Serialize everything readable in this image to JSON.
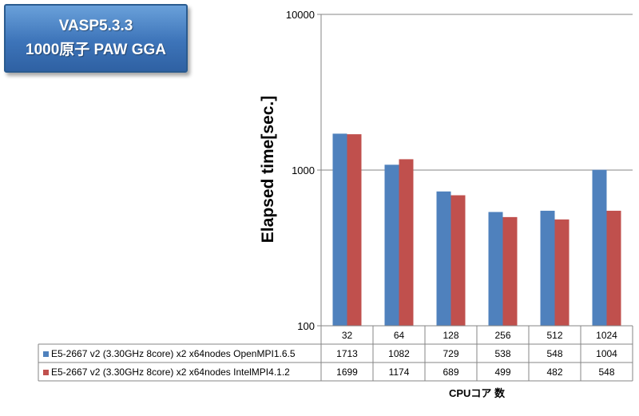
{
  "title_box": {
    "line1": "VASP5.3.3",
    "line2": "1000原子 PAW GGA"
  },
  "chart_data": {
    "type": "bar",
    "categories": [
      "32",
      "64",
      "128",
      "256",
      "512",
      "1024"
    ],
    "series": [
      {
        "name": "E5-2667 v2 (3.30GHz 8core) x2 x64nodes OpenMPI1.6.5",
        "color": "#4f81bd",
        "values": [
          1713,
          1082,
          729,
          538,
          548,
          1004
        ]
      },
      {
        "name": "E5-2667 v2 (3.30GHz 8core) x2 x64nodes IntelMPI4.1.2",
        "color": "#c0504d",
        "values": [
          1699,
          1174,
          689,
          499,
          482,
          548
        ]
      }
    ],
    "ylabel": "Elapsed time[sec.]",
    "xlabel": "CPUコア 数",
    "yscale": "log",
    "ylim": [
      100,
      10000
    ],
    "yticks": [
      "100",
      "1000",
      "10000"
    ],
    "grid": true,
    "legend": "data-table"
  }
}
